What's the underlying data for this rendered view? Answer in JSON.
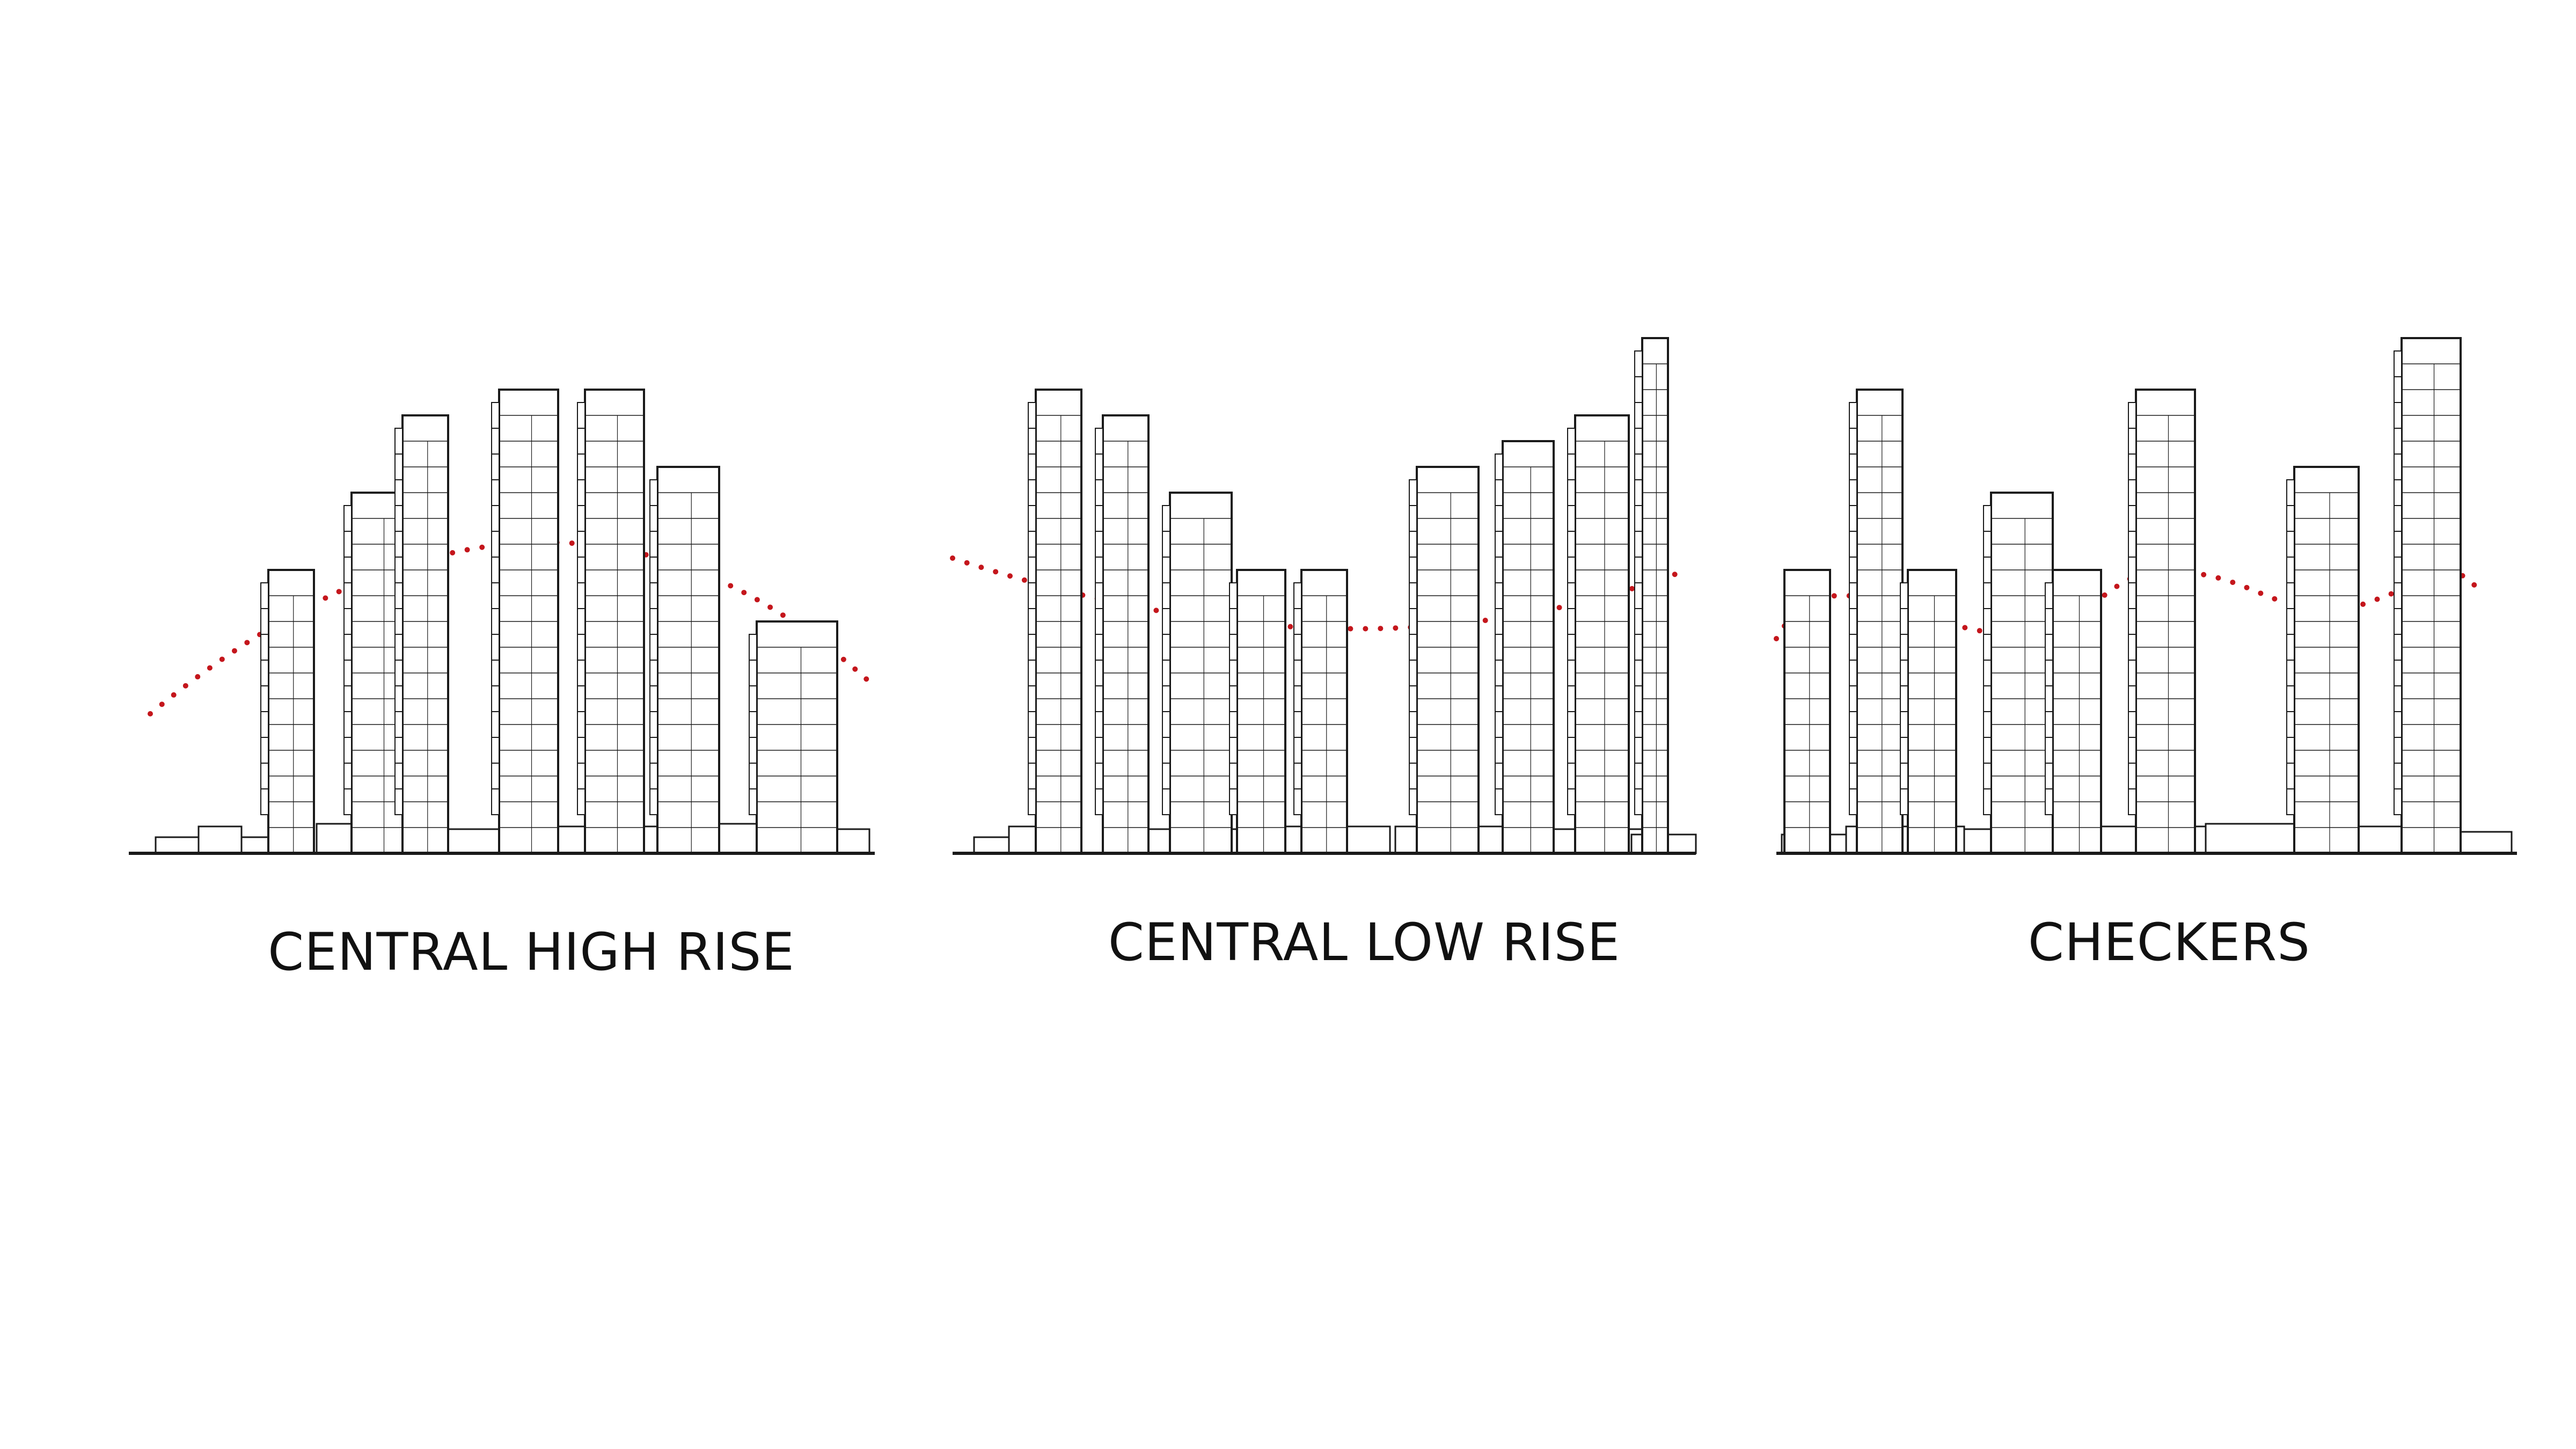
{
  "diagram": {
    "line_color": "#1a1a1a",
    "profile_color": "#c4161c",
    "panels": [
      {
        "id": "central-high-rise",
        "label": "CENTRAL HIGH RISE",
        "profile": "arch",
        "towers": [
          {
            "floors": 10,
            "stepped": true
          },
          {
            "floors": 13,
            "stepped": true
          },
          {
            "floors": 16,
            "stepped": true
          },
          {
            "floors": 17,
            "stepped": true
          },
          {
            "floors": 17,
            "stepped": true
          },
          {
            "floors": 14,
            "stepped": true
          },
          {
            "floors": 8,
            "stepped": true
          }
        ]
      },
      {
        "id": "central-low-rise",
        "label": "CENTRAL LOW RISE",
        "profile": "valley",
        "towers": [
          {
            "floors": 17,
            "stepped": true
          },
          {
            "floors": 16,
            "stepped": true
          },
          {
            "floors": 13,
            "stepped": true
          },
          {
            "floors": 10,
            "stepped": true
          },
          {
            "floors": 10,
            "stepped": true
          },
          {
            "floors": 14,
            "stepped": true
          },
          {
            "floors": 15,
            "stepped": true
          },
          {
            "floors": 16,
            "stepped": true
          },
          {
            "floors": 19,
            "stepped": true
          }
        ]
      },
      {
        "id": "checkers",
        "label": "CHECKERS",
        "profile": "wave",
        "towers": [
          {
            "floors": 10,
            "stepped": false
          },
          {
            "floors": 17,
            "stepped": true
          },
          {
            "floors": 10,
            "stepped": true
          },
          {
            "floors": 13,
            "stepped": true
          },
          {
            "floors": 10,
            "stepped": true
          },
          {
            "floors": 17,
            "stepped": true
          },
          {
            "floors": 14,
            "stepped": true
          },
          {
            "floors": 19,
            "stepped": true
          }
        ]
      }
    ]
  }
}
